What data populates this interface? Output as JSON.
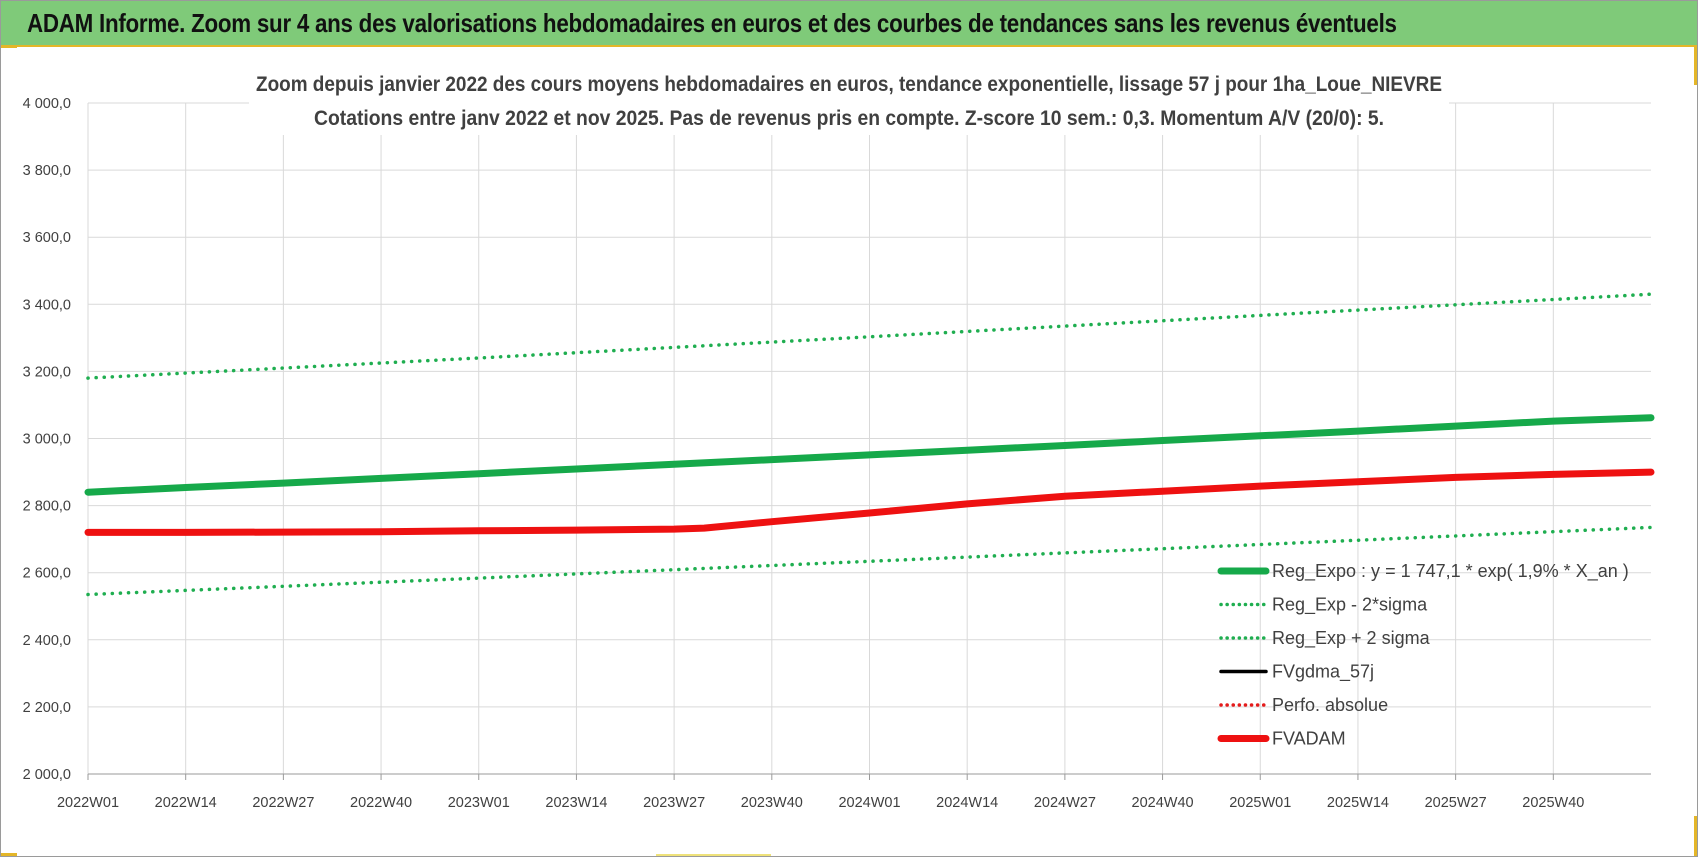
{
  "header": {
    "title": "ADAM Informe. Zoom sur 4 ans des valorisations hebdomadaires en euros et des courbes de tendances sans les revenus éventuels"
  },
  "colors": {
    "header_bg": "#7fca79",
    "accent": "#e4b628",
    "reg_expo": "#16a94a",
    "sigma": "#1fae50",
    "fvgdma": "#000000",
    "perfo": "#e41b1b",
    "fvadam": "#ee1111",
    "grid": "#d9d9d9"
  },
  "chart_data": {
    "type": "line",
    "title": "Zoom depuis janvier 2022 des cours moyens hebdomadaires en euros, tendance exponentielle, lissage 57 j pour 1ha_Loue_NIEVRE",
    "subtitle": "Cotations entre janv 2022 et nov 2025. Pas de revenus pris en compte. Z-score 10 sem.: 0,3. Momentum A/V (20/0): 5.",
    "x_ticks": [
      "2022W01",
      "2022W14",
      "2022W27",
      "2022W40",
      "2023W01",
      "2023W14",
      "2023W27",
      "2023W40",
      "2024W01",
      "2024W14",
      "2024W27",
      "2024W40",
      "2025W01",
      "2025W14",
      "2025W27",
      "2025W40"
    ],
    "x_range": [
      0,
      208
    ],
    "x_tick_step": 13,
    "ylim": [
      2000,
      4000
    ],
    "y_ticks": [
      "2 000,0",
      "2 200,0",
      "2 400,0",
      "2 600,0",
      "2 800,0",
      "3 000,0",
      "3 200,0",
      "3 400,0",
      "3 600,0",
      "3 800,0",
      "4 000,0"
    ],
    "grid": true,
    "legend_position": "bottom-right",
    "series": [
      {
        "name": "Reg_Expo : y = 1 747,1 * exp( 1,9% *  X_an )",
        "style": "solid-thick",
        "color": "#16a94a",
        "x": [
          0,
          13,
          26,
          39,
          52,
          65,
          78,
          91,
          104,
          117,
          130,
          143,
          156,
          169,
          182,
          195,
          208
        ],
        "y": [
          2840,
          2854,
          2867,
          2881,
          2895,
          2909,
          2923,
          2937,
          2951,
          2965,
          2979,
          2994,
          3008,
          3022,
          3037,
          3052,
          3062
        ]
      },
      {
        "name": "Reg_Exp - 2*sigma",
        "style": "dotted",
        "color": "#1fae50",
        "x": [
          0,
          52,
          104,
          156,
          208
        ],
        "y": [
          2535,
          2584,
          2634,
          2684,
          2735
        ]
      },
      {
        "name": "Reg_Exp + 2 sigma",
        "style": "dotted",
        "color": "#1fae50",
        "x": [
          0,
          52,
          104,
          156,
          208
        ],
        "y": [
          3180,
          3240,
          3303,
          3367,
          3430
        ]
      },
      {
        "name": "FVgdma_57j",
        "style": "solid",
        "color": "#000000",
        "x": [
          0,
          13,
          26,
          39,
          52,
          65,
          78,
          82,
          91,
          104,
          117,
          130,
          143,
          156,
          169,
          182,
          195,
          208
        ],
        "y": [
          2720,
          2720,
          2721,
          2722,
          2725,
          2727,
          2730,
          2733,
          2752,
          2778,
          2805,
          2828,
          2843,
          2858,
          2871,
          2884,
          2893,
          2900
        ]
      },
      {
        "name": "Perfo. absolue",
        "style": "dotted",
        "color": "#e41b1b",
        "x": [
          0,
          13,
          26,
          39,
          52,
          65,
          78,
          82,
          91,
          104,
          117,
          130,
          143,
          156,
          169,
          182,
          195,
          208
        ],
        "y": [
          2720,
          2720,
          2721,
          2722,
          2725,
          2727,
          2730,
          2733,
          2752,
          2778,
          2805,
          2828,
          2843,
          2858,
          2871,
          2884,
          2893,
          2900
        ]
      },
      {
        "name": "FVADAM",
        "style": "solid-thick",
        "color": "#ee1111",
        "x": [
          0,
          13,
          26,
          39,
          52,
          65,
          78,
          82,
          91,
          104,
          117,
          130,
          143,
          156,
          169,
          182,
          195,
          208
        ],
        "y": [
          2720,
          2720,
          2721,
          2722,
          2725,
          2727,
          2730,
          2733,
          2752,
          2778,
          2805,
          2828,
          2843,
          2858,
          2871,
          2884,
          2893,
          2900
        ]
      }
    ]
  }
}
